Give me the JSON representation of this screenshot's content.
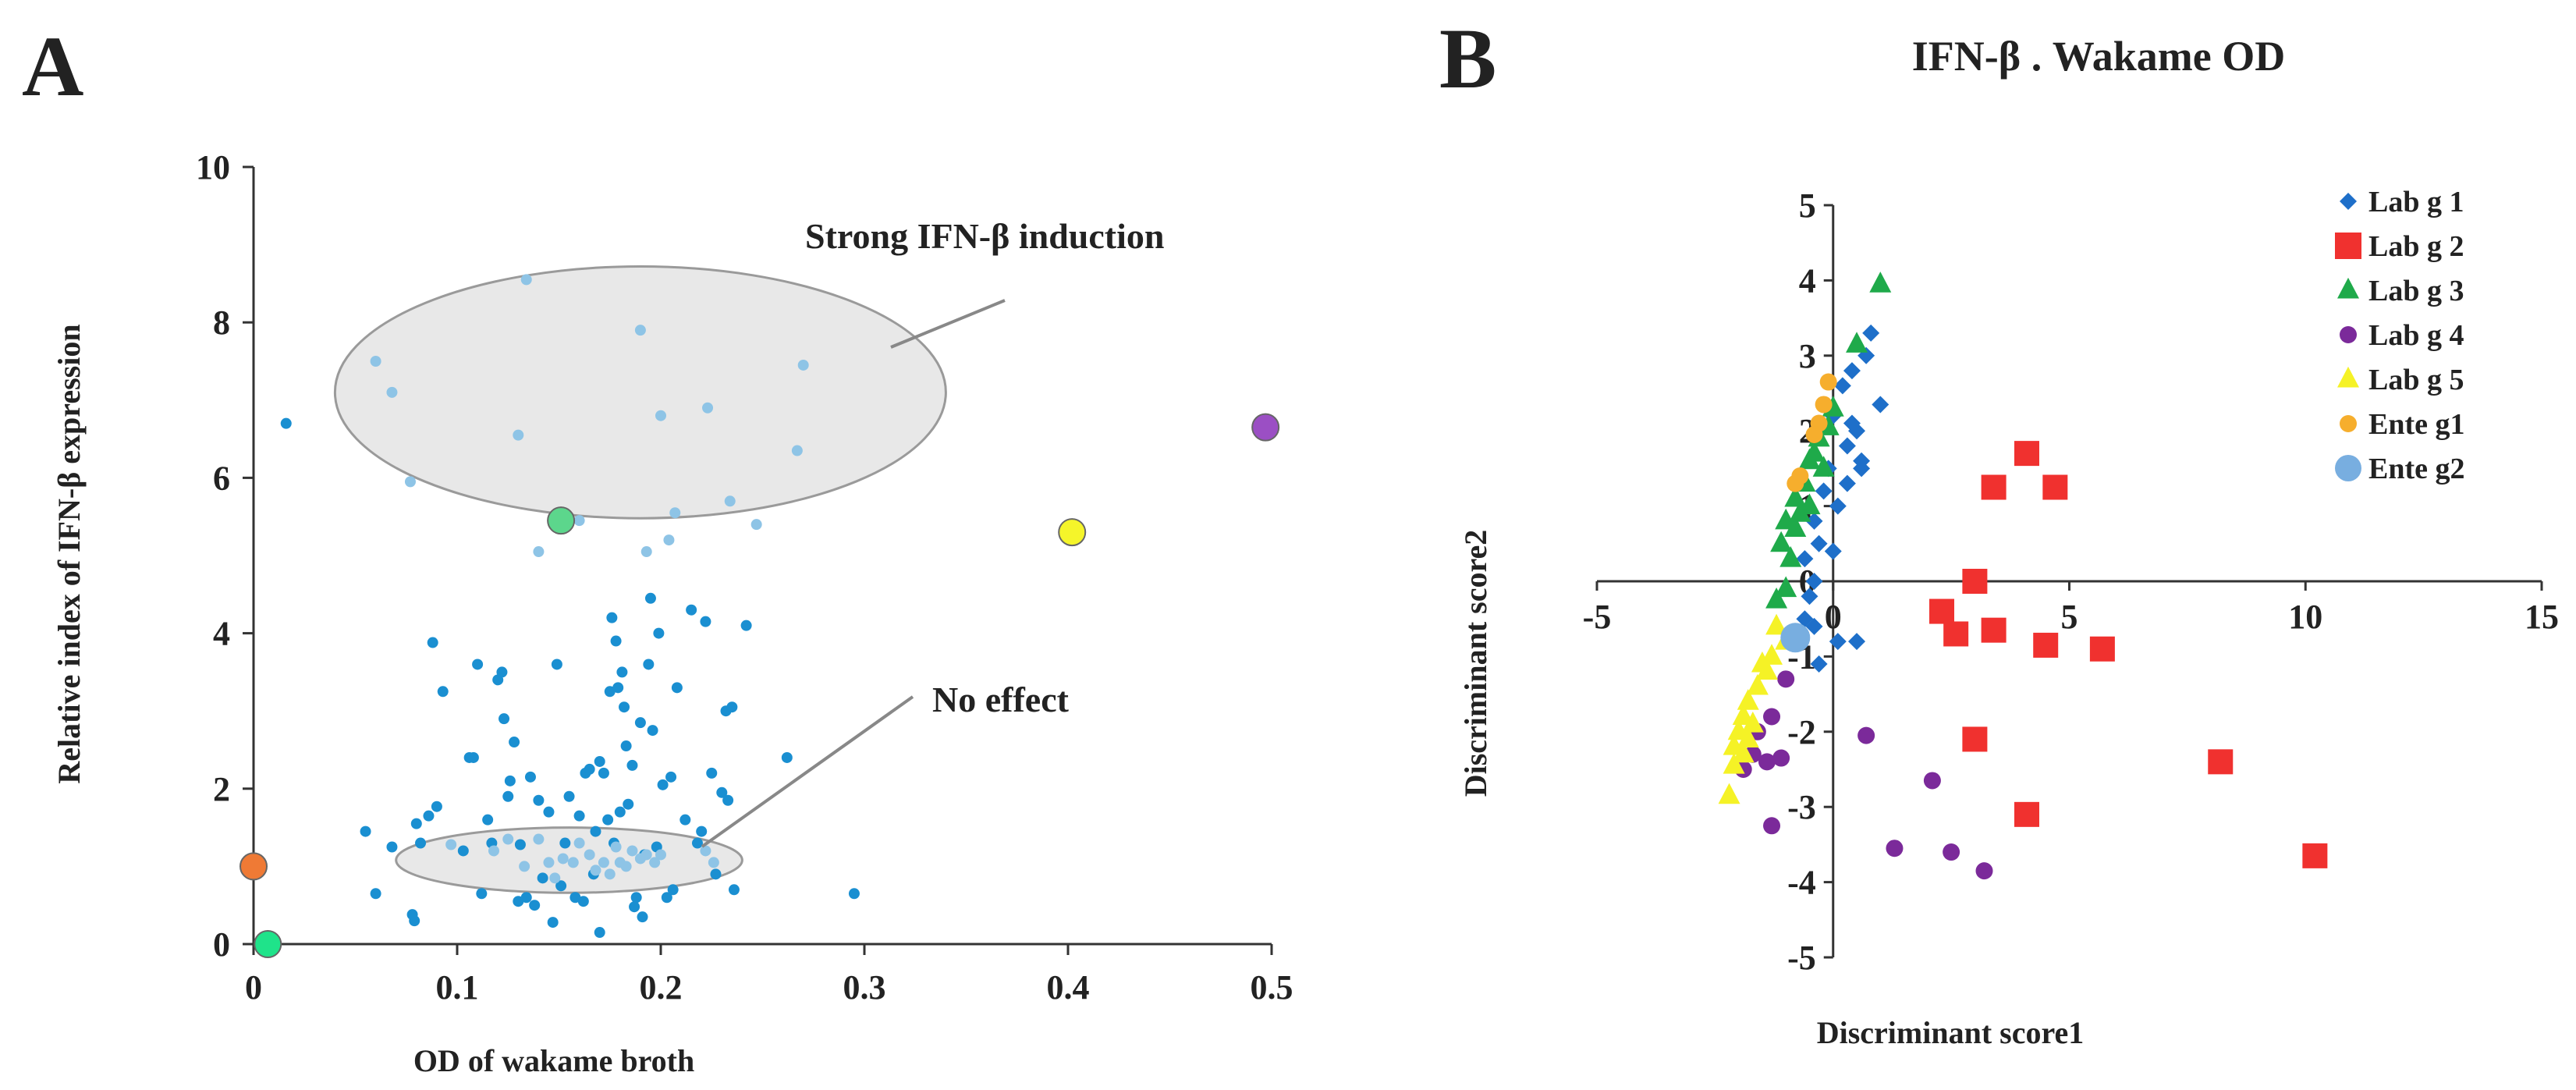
{
  "panel_labels": {
    "a": "A",
    "b": "B"
  },
  "chart_data": [
    {
      "type": "scatter",
      "panel": "A",
      "title": "",
      "xlabel": "OD of wakame broth",
      "ylabel": "Relative index of IFN-β expression",
      "xlim": [
        0,
        0.5
      ],
      "ylim": [
        0,
        10
      ],
      "xticks": [
        0,
        0.1,
        0.2,
        0.3,
        0.4,
        0.5
      ],
      "xtick_labels": [
        "0",
        "0.1",
        "0.2",
        "0.3",
        "0.4",
        "0.5"
      ],
      "yticks": [
        0,
        2,
        4,
        6,
        8,
        10
      ],
      "ytick_labels": [
        "0",
        "2",
        "4",
        "6",
        "8",
        "10"
      ],
      "colors": {
        "main": "#1a8fd1",
        "highlight": "#8ec4e6",
        "ellipse_fill": "#e8e8e8",
        "ellipse_stroke": "#9a9a9a"
      },
      "annotations": [
        {
          "text": "Strong IFN-β induction",
          "cx": 0.19,
          "cy": 7.1,
          "rx": 0.15,
          "ry": 1.62
        },
        {
          "text": "No effect",
          "cx": 0.155,
          "cy": 1.08,
          "rx": 0.085,
          "ry": 0.42
        }
      ],
      "series": [
        {
          "name": "strains",
          "color": "#1a8fd1",
          "points": [
            [
              0.016,
              6.7
            ],
            [
              0.055,
              1.45
            ],
            [
              0.06,
              0.65
            ],
            [
              0.068,
              1.25
            ],
            [
              0.078,
              0.38
            ],
            [
              0.079,
              0.3
            ],
            [
              0.08,
              1.55
            ],
            [
              0.082,
              1.3
            ],
            [
              0.086,
              1.65
            ],
            [
              0.088,
              3.88
            ],
            [
              0.09,
              1.77
            ],
            [
              0.093,
              3.25
            ],
            [
              0.103,
              1.2
            ],
            [
              0.106,
              2.4
            ],
            [
              0.108,
              2.4
            ],
            [
              0.11,
              3.6
            ],
            [
              0.112,
              0.65
            ],
            [
              0.115,
              1.6
            ],
            [
              0.117,
              1.3
            ],
            [
              0.12,
              3.4
            ],
            [
              0.122,
              3.5
            ],
            [
              0.123,
              2.9
            ],
            [
              0.125,
              1.9
            ],
            [
              0.126,
              2.1
            ],
            [
              0.128,
              2.6
            ],
            [
              0.13,
              0.55
            ],
            [
              0.131,
              1.28
            ],
            [
              0.134,
              0.6
            ],
            [
              0.136,
              2.15
            ],
            [
              0.138,
              0.5
            ],
            [
              0.14,
              1.85
            ],
            [
              0.142,
              0.85
            ],
            [
              0.145,
              1.7
            ],
            [
              0.147,
              0.28
            ],
            [
              0.149,
              3.6
            ],
            [
              0.151,
              0.75
            ],
            [
              0.153,
              1.3
            ],
            [
              0.155,
              1.9
            ],
            [
              0.158,
              0.6
            ],
            [
              0.16,
              1.65
            ],
            [
              0.162,
              0.55
            ],
            [
              0.163,
              2.2
            ],
            [
              0.165,
              2.25
            ],
            [
              0.167,
              0.9
            ],
            [
              0.168,
              1.45
            ],
            [
              0.17,
              2.35
            ],
            [
              0.17,
              0.15
            ],
            [
              0.172,
              2.2
            ],
            [
              0.174,
              1.6
            ],
            [
              0.175,
              3.25
            ],
            [
              0.176,
              4.2
            ],
            [
              0.177,
              1.3
            ],
            [
              0.178,
              3.9
            ],
            [
              0.179,
              3.3
            ],
            [
              0.18,
              1.7
            ],
            [
              0.181,
              3.5
            ],
            [
              0.182,
              3.05
            ],
            [
              0.183,
              2.55
            ],
            [
              0.184,
              1.8
            ],
            [
              0.186,
              2.3
            ],
            [
              0.187,
              0.48
            ],
            [
              0.188,
              0.6
            ],
            [
              0.19,
              2.85
            ],
            [
              0.191,
              0.35
            ],
            [
              0.192,
              1.15
            ],
            [
              0.194,
              3.6
            ],
            [
              0.195,
              4.45
            ],
            [
              0.196,
              2.75
            ],
            [
              0.198,
              1.25
            ],
            [
              0.199,
              4.0
            ],
            [
              0.201,
              2.05
            ],
            [
              0.203,
              0.6
            ],
            [
              0.205,
              2.15
            ],
            [
              0.206,
              0.7
            ],
            [
              0.208,
              3.3
            ],
            [
              0.212,
              1.6
            ],
            [
              0.215,
              4.3
            ],
            [
              0.218,
              1.3
            ],
            [
              0.22,
              1.45
            ],
            [
              0.222,
              4.15
            ],
            [
              0.225,
              2.2
            ],
            [
              0.227,
              0.9
            ],
            [
              0.23,
              1.95
            ],
            [
              0.232,
              3.0
            ],
            [
              0.233,
              1.85
            ],
            [
              0.235,
              3.05
            ],
            [
              0.236,
              0.7
            ],
            [
              0.242,
              4.1
            ],
            [
              0.262,
              2.4
            ],
            [
              0.295,
              0.65
            ]
          ]
        },
        {
          "name": "strong-induction-cluster",
          "color": "#8ec4e6",
          "points": [
            [
              0.06,
              7.5
            ],
            [
              0.068,
              7.1
            ],
            [
              0.077,
              5.95
            ],
            [
              0.13,
              6.55
            ],
            [
              0.134,
              8.55
            ],
            [
              0.14,
              5.05
            ],
            [
              0.16,
              5.45
            ],
            [
              0.19,
              7.9
            ],
            [
              0.193,
              5.05
            ],
            [
              0.2,
              6.8
            ],
            [
              0.204,
              5.2
            ],
            [
              0.207,
              5.55
            ],
            [
              0.223,
              6.9
            ],
            [
              0.234,
              5.7
            ],
            [
              0.247,
              5.4
            ],
            [
              0.267,
              6.35
            ],
            [
              0.27,
              7.45
            ]
          ]
        },
        {
          "name": "no-effect-cluster",
          "color": "#8ec4e6",
          "points": [
            [
              0.097,
              1.28
            ],
            [
              0.118,
              1.2
            ],
            [
              0.125,
              1.35
            ],
            [
              0.133,
              1.0
            ],
            [
              0.14,
              1.35
            ],
            [
              0.145,
              1.05
            ],
            [
              0.148,
              0.85
            ],
            [
              0.152,
              1.1
            ],
            [
              0.157,
              1.05
            ],
            [
              0.16,
              1.3
            ],
            [
              0.165,
              1.15
            ],
            [
              0.168,
              0.95
            ],
            [
              0.172,
              1.05
            ],
            [
              0.175,
              0.9
            ],
            [
              0.178,
              1.25
            ],
            [
              0.18,
              1.05
            ],
            [
              0.183,
              1.0
            ],
            [
              0.186,
              1.2
            ],
            [
              0.19,
              1.1
            ],
            [
              0.193,
              1.15
            ],
            [
              0.197,
              1.05
            ],
            [
              0.2,
              1.15
            ],
            [
              0.222,
              1.2
            ],
            [
              0.226,
              1.05
            ]
          ]
        },
        {
          "name": "outlier-purple",
          "color": "#9b4fc4",
          "points": [
            [
              0.497,
              6.65
            ]
          ],
          "big": true
        },
        {
          "name": "outlier-yellow",
          "color": "#f5f52a",
          "points": [
            [
              0.402,
              5.3
            ]
          ],
          "big": true
        },
        {
          "name": "outlier-green",
          "color": "#5cd68c",
          "points": [
            [
              0.151,
              5.45
            ]
          ],
          "big": true
        },
        {
          "name": "outlier-orange",
          "color": "#ef7a35",
          "points": [
            [
              0.0,
              1.0
            ]
          ],
          "big": true
        },
        {
          "name": "outlier-mint",
          "color": "#1fe38a",
          "points": [
            [
              0.007,
              0.0
            ]
          ],
          "big": true
        }
      ]
    },
    {
      "type": "scatter",
      "panel": "B",
      "title": "IFN-β . Wakame  OD",
      "xlabel": "Discriminant  score1",
      "ylabel": "Discriminant  score2",
      "xlim": [
        -5,
        15
      ],
      "ylim": [
        -5,
        5
      ],
      "xticks": [
        -5,
        0,
        5,
        10,
        15
      ],
      "xtick_labels": [
        "-5",
        "0",
        "5",
        "10",
        "15"
      ],
      "yticks": [
        -5,
        -4,
        -3,
        -2,
        -1,
        0,
        1,
        2,
        3,
        4,
        5
      ],
      "ytick_labels": [
        "-5",
        "-4",
        "-3",
        "-2",
        "-1",
        "0",
        "1",
        "2",
        "3",
        "4",
        "5"
      ],
      "legend_position": "top-right",
      "series": [
        {
          "name": "Lab   g 1",
          "color": "#1e6fc9",
          "marker": "diamond",
          "points": [
            [
              0.8,
              3.3
            ],
            [
              0.7,
              3.0
            ],
            [
              0.4,
              2.8
            ],
            [
              0.2,
              2.6
            ],
            [
              0.5,
              2.0
            ],
            [
              0.3,
              1.8
            ],
            [
              -0.1,
              1.5
            ],
            [
              0.3,
              1.3
            ],
            [
              0.6,
              1.5
            ],
            [
              -0.2,
              1.2
            ],
            [
              0.1,
              1.0
            ],
            [
              -0.4,
              0.8
            ],
            [
              -0.3,
              0.5
            ],
            [
              0.0,
              0.4
            ],
            [
              -0.6,
              0.3
            ],
            [
              -0.4,
              0.0
            ],
            [
              -0.5,
              -0.2
            ],
            [
              -0.6,
              -0.5
            ],
            [
              -0.4,
              -0.6
            ],
            [
              -0.3,
              -1.1
            ],
            [
              0.5,
              -0.8
            ],
            [
              0.1,
              -0.8
            ],
            [
              0.4,
              2.1
            ],
            [
              0.0,
              2.2
            ],
            [
              1.0,
              2.35
            ],
            [
              0.6,
              1.6
            ]
          ]
        },
        {
          "name": "Lab   g 2",
          "color": "#f0312f",
          "marker": "square",
          "points": [
            [
              4.1,
              1.7
            ],
            [
              3.4,
              1.25
            ],
            [
              4.7,
              1.25
            ],
            [
              3.0,
              0.0
            ],
            [
              2.3,
              -0.4
            ],
            [
              2.6,
              -0.7
            ],
            [
              3.4,
              -0.65
            ],
            [
              4.5,
              -0.85
            ],
            [
              5.7,
              -0.9
            ],
            [
              3.0,
              -2.1
            ],
            [
              8.2,
              -2.4
            ],
            [
              4.1,
              -3.1
            ],
            [
              10.2,
              -3.65
            ]
          ]
        },
        {
          "name": "Lab   g 3",
          "color": "#1faa4a",
          "marker": "triangle",
          "points": [
            [
              1.0,
              3.95
            ],
            [
              0.5,
              3.15
            ],
            [
              0.0,
              2.3
            ],
            [
              -0.1,
              2.05
            ],
            [
              -0.3,
              1.9
            ],
            [
              -0.5,
              1.6
            ],
            [
              -0.2,
              1.5
            ],
            [
              -0.6,
              1.3
            ],
            [
              -0.8,
              1.1
            ],
            [
              -0.5,
              1.0
            ],
            [
              -1.0,
              0.8
            ],
            [
              -0.8,
              0.7
            ],
            [
              -1.1,
              0.5
            ],
            [
              -0.9,
              0.3
            ],
            [
              -1.2,
              -0.25
            ],
            [
              -1.0,
              -0.1
            ],
            [
              -0.7,
              0.9
            ],
            [
              -0.4,
              1.7
            ]
          ]
        },
        {
          "name": "Lab   g 4",
          "color": "#7b2a9a",
          "marker": "circle",
          "points": [
            [
              -1.0,
              -1.3
            ],
            [
              -1.3,
              -1.8
            ],
            [
              -1.6,
              -2.0
            ],
            [
              -1.1,
              -2.35
            ],
            [
              -1.4,
              -2.4
            ],
            [
              -1.9,
              -2.5
            ],
            [
              0.7,
              -2.05
            ],
            [
              2.1,
              -2.65
            ],
            [
              -1.3,
              -3.25
            ],
            [
              1.3,
              -3.55
            ],
            [
              2.5,
              -3.6
            ],
            [
              3.2,
              -3.85
            ],
            [
              -1.7,
              -2.3
            ]
          ]
        },
        {
          "name": "Lab   g 5",
          "color": "#f5f226",
          "marker": "triangle",
          "points": [
            [
              -1.2,
              -0.6
            ],
            [
              -1.0,
              -0.8
            ],
            [
              -1.3,
              -1.0
            ],
            [
              -1.4,
              -1.2
            ],
            [
              -1.6,
              -1.4
            ],
            [
              -1.8,
              -1.6
            ],
            [
              -1.9,
              -1.8
            ],
            [
              -1.7,
              -1.9
            ],
            [
              -2.0,
              -2.0
            ],
            [
              -1.8,
              -2.1
            ],
            [
              -2.1,
              -2.2
            ],
            [
              -1.9,
              -2.3
            ],
            [
              -2.1,
              -2.45
            ],
            [
              -2.2,
              -2.85
            ],
            [
              -1.5,
              -1.1
            ]
          ]
        },
        {
          "name": "Ente g1",
          "color": "#f6ae2d",
          "marker": "circle",
          "points": [
            [
              -0.1,
              2.65
            ],
            [
              -0.3,
              2.1
            ],
            [
              -0.4,
              1.95
            ],
            [
              -0.7,
              1.4
            ],
            [
              -0.8,
              1.3
            ],
            [
              -0.2,
              2.35
            ]
          ]
        },
        {
          "name": "Ente g2",
          "color": "#78aee0",
          "marker": "circle",
          "points": [
            [
              -0.8,
              -0.75
            ]
          ],
          "big": true
        }
      ]
    }
  ]
}
